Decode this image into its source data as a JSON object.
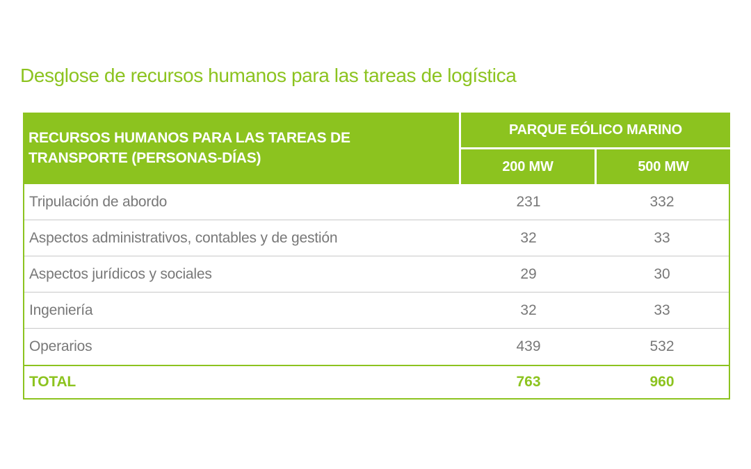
{
  "title": "Desglose de recursos humanos para las tareas de logística",
  "colors": {
    "accent_green": "#8CC31F",
    "header_text": "#FFFFFF",
    "body_text": "#787878",
    "row_divider": "#C8C8C8"
  },
  "table": {
    "header": {
      "main_label": "RECURSOS HUMANOS PARA LAS TAREAS DE TRANSPORTE (PERSONAS-DÍAS)",
      "group_label": "PARQUE EÓLICO MARINO",
      "sub_columns": [
        "200 MW",
        "500 MW"
      ]
    },
    "rows": [
      {
        "label": "Tripulación de abordo",
        "mw200": "231",
        "mw500": "332"
      },
      {
        "label": "Aspectos administrativos, contables y de gestión",
        "mw200": "32",
        "mw500": "33"
      },
      {
        "label": "Aspectos jurídicos y sociales",
        "mw200": "29",
        "mw500": "30"
      },
      {
        "label": "Ingeniería",
        "mw200": "32",
        "mw500": "33"
      },
      {
        "label": "Operarios",
        "mw200": "439",
        "mw500": "532"
      }
    ],
    "total": {
      "label": "TOTAL",
      "mw200": "763",
      "mw500": "960"
    }
  },
  "chart_data": {
    "type": "table",
    "title": "Desglose de recursos humanos para las tareas de logística",
    "columns": [
      "RECURSOS HUMANOS PARA LAS TAREAS DE TRANSPORTE (PERSONAS-DÍAS)",
      "PARQUE EÓLICO MARINO 200 MW",
      "PARQUE EÓLICO MARINO 500 MW"
    ],
    "rows": [
      [
        "Tripulación de abordo",
        231,
        332
      ],
      [
        "Aspectos administrativos, contables y de gestión",
        32,
        33
      ],
      [
        "Aspectos jurídicos y sociales",
        29,
        30
      ],
      [
        "Ingeniería",
        32,
        33
      ],
      [
        "Operarios",
        439,
        532
      ],
      [
        "TOTAL",
        763,
        960
      ]
    ]
  }
}
